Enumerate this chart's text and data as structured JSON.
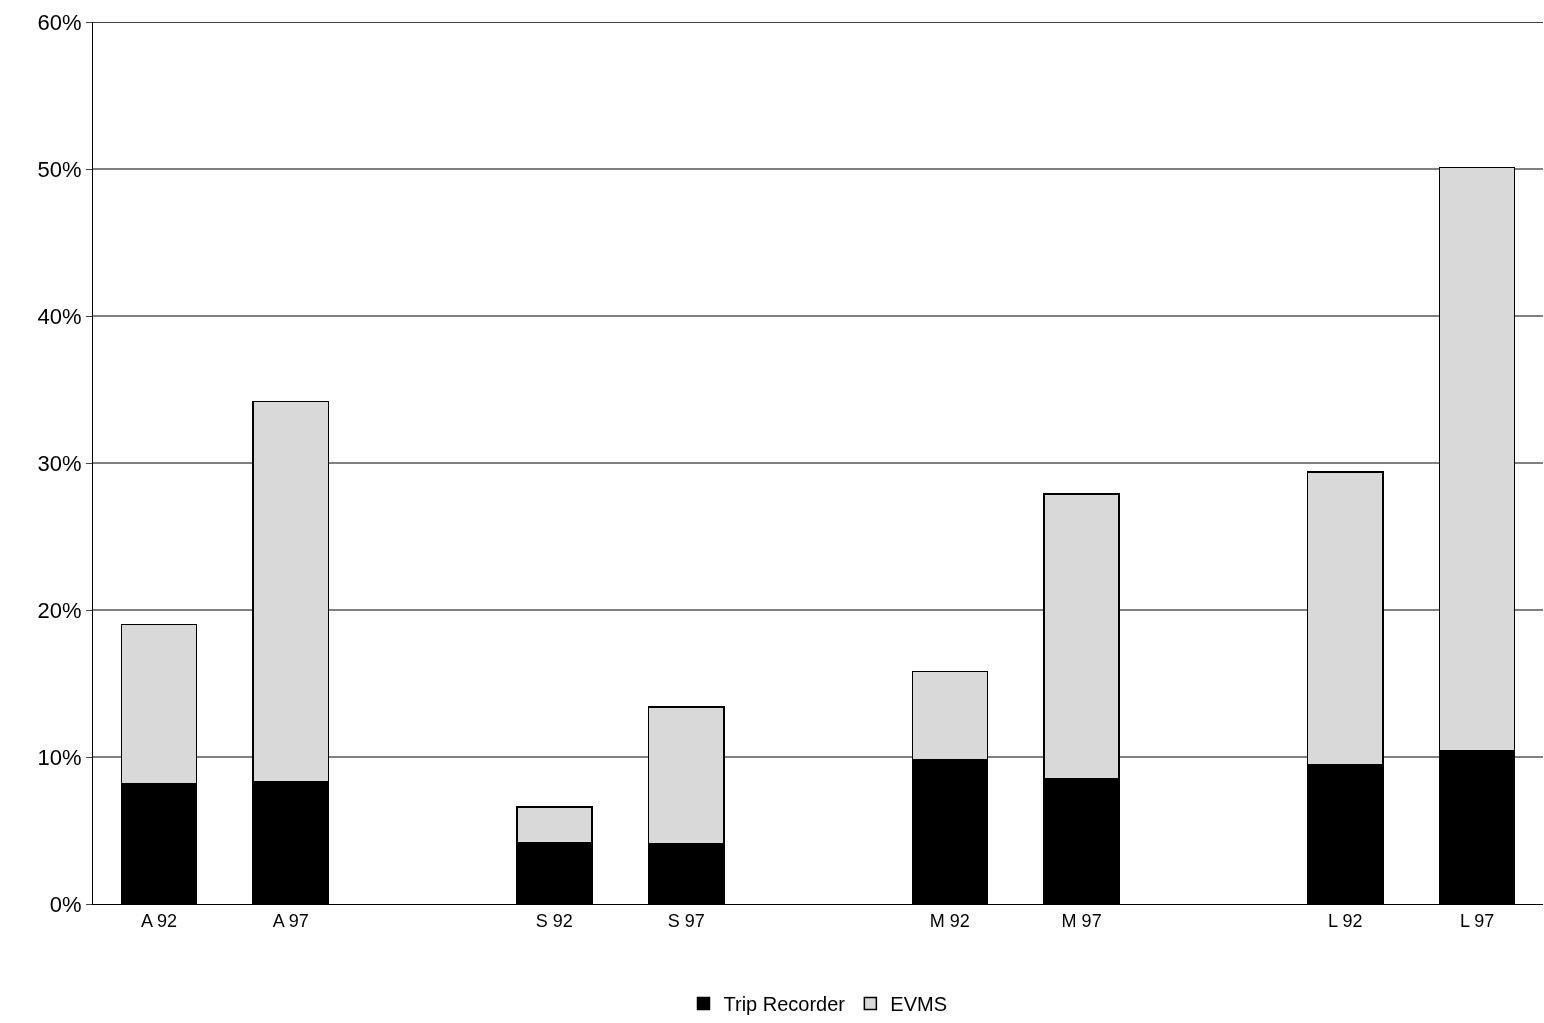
{
  "chart_data": {
    "type": "bar",
    "stacked": true,
    "categories": [
      "A 92",
      "A 97",
      null,
      "S 92",
      "S 97",
      null,
      "M 92",
      "M 97",
      null,
      "L 92",
      "L 97"
    ],
    "series": [
      {
        "name": "Trip Recorder",
        "color": "#000000",
        "values": [
          8.2,
          8.3,
          null,
          4.2,
          4.1,
          null,
          9.8,
          8.5,
          null,
          9.5,
          10.4
        ]
      },
      {
        "name": "EVMS",
        "color": "#d9d9d9",
        "values": [
          10.8,
          25.9,
          null,
          2.4,
          9.3,
          null,
          6.0,
          19.4,
          null,
          19.9,
          39.7
        ]
      }
    ],
    "ylim": [
      0,
      60
    ],
    "yticks": [
      {
        "value": 0,
        "label": "0%"
      },
      {
        "value": 10,
        "label": "10%"
      },
      {
        "value": 20,
        "label": "20%"
      },
      {
        "value": 30,
        "label": "30%"
      },
      {
        "value": 40,
        "label": "40%"
      },
      {
        "value": 50,
        "label": "50%"
      },
      {
        "value": 60,
        "label": "60%"
      }
    ],
    "grid": "y",
    "legend": "bottom"
  }
}
